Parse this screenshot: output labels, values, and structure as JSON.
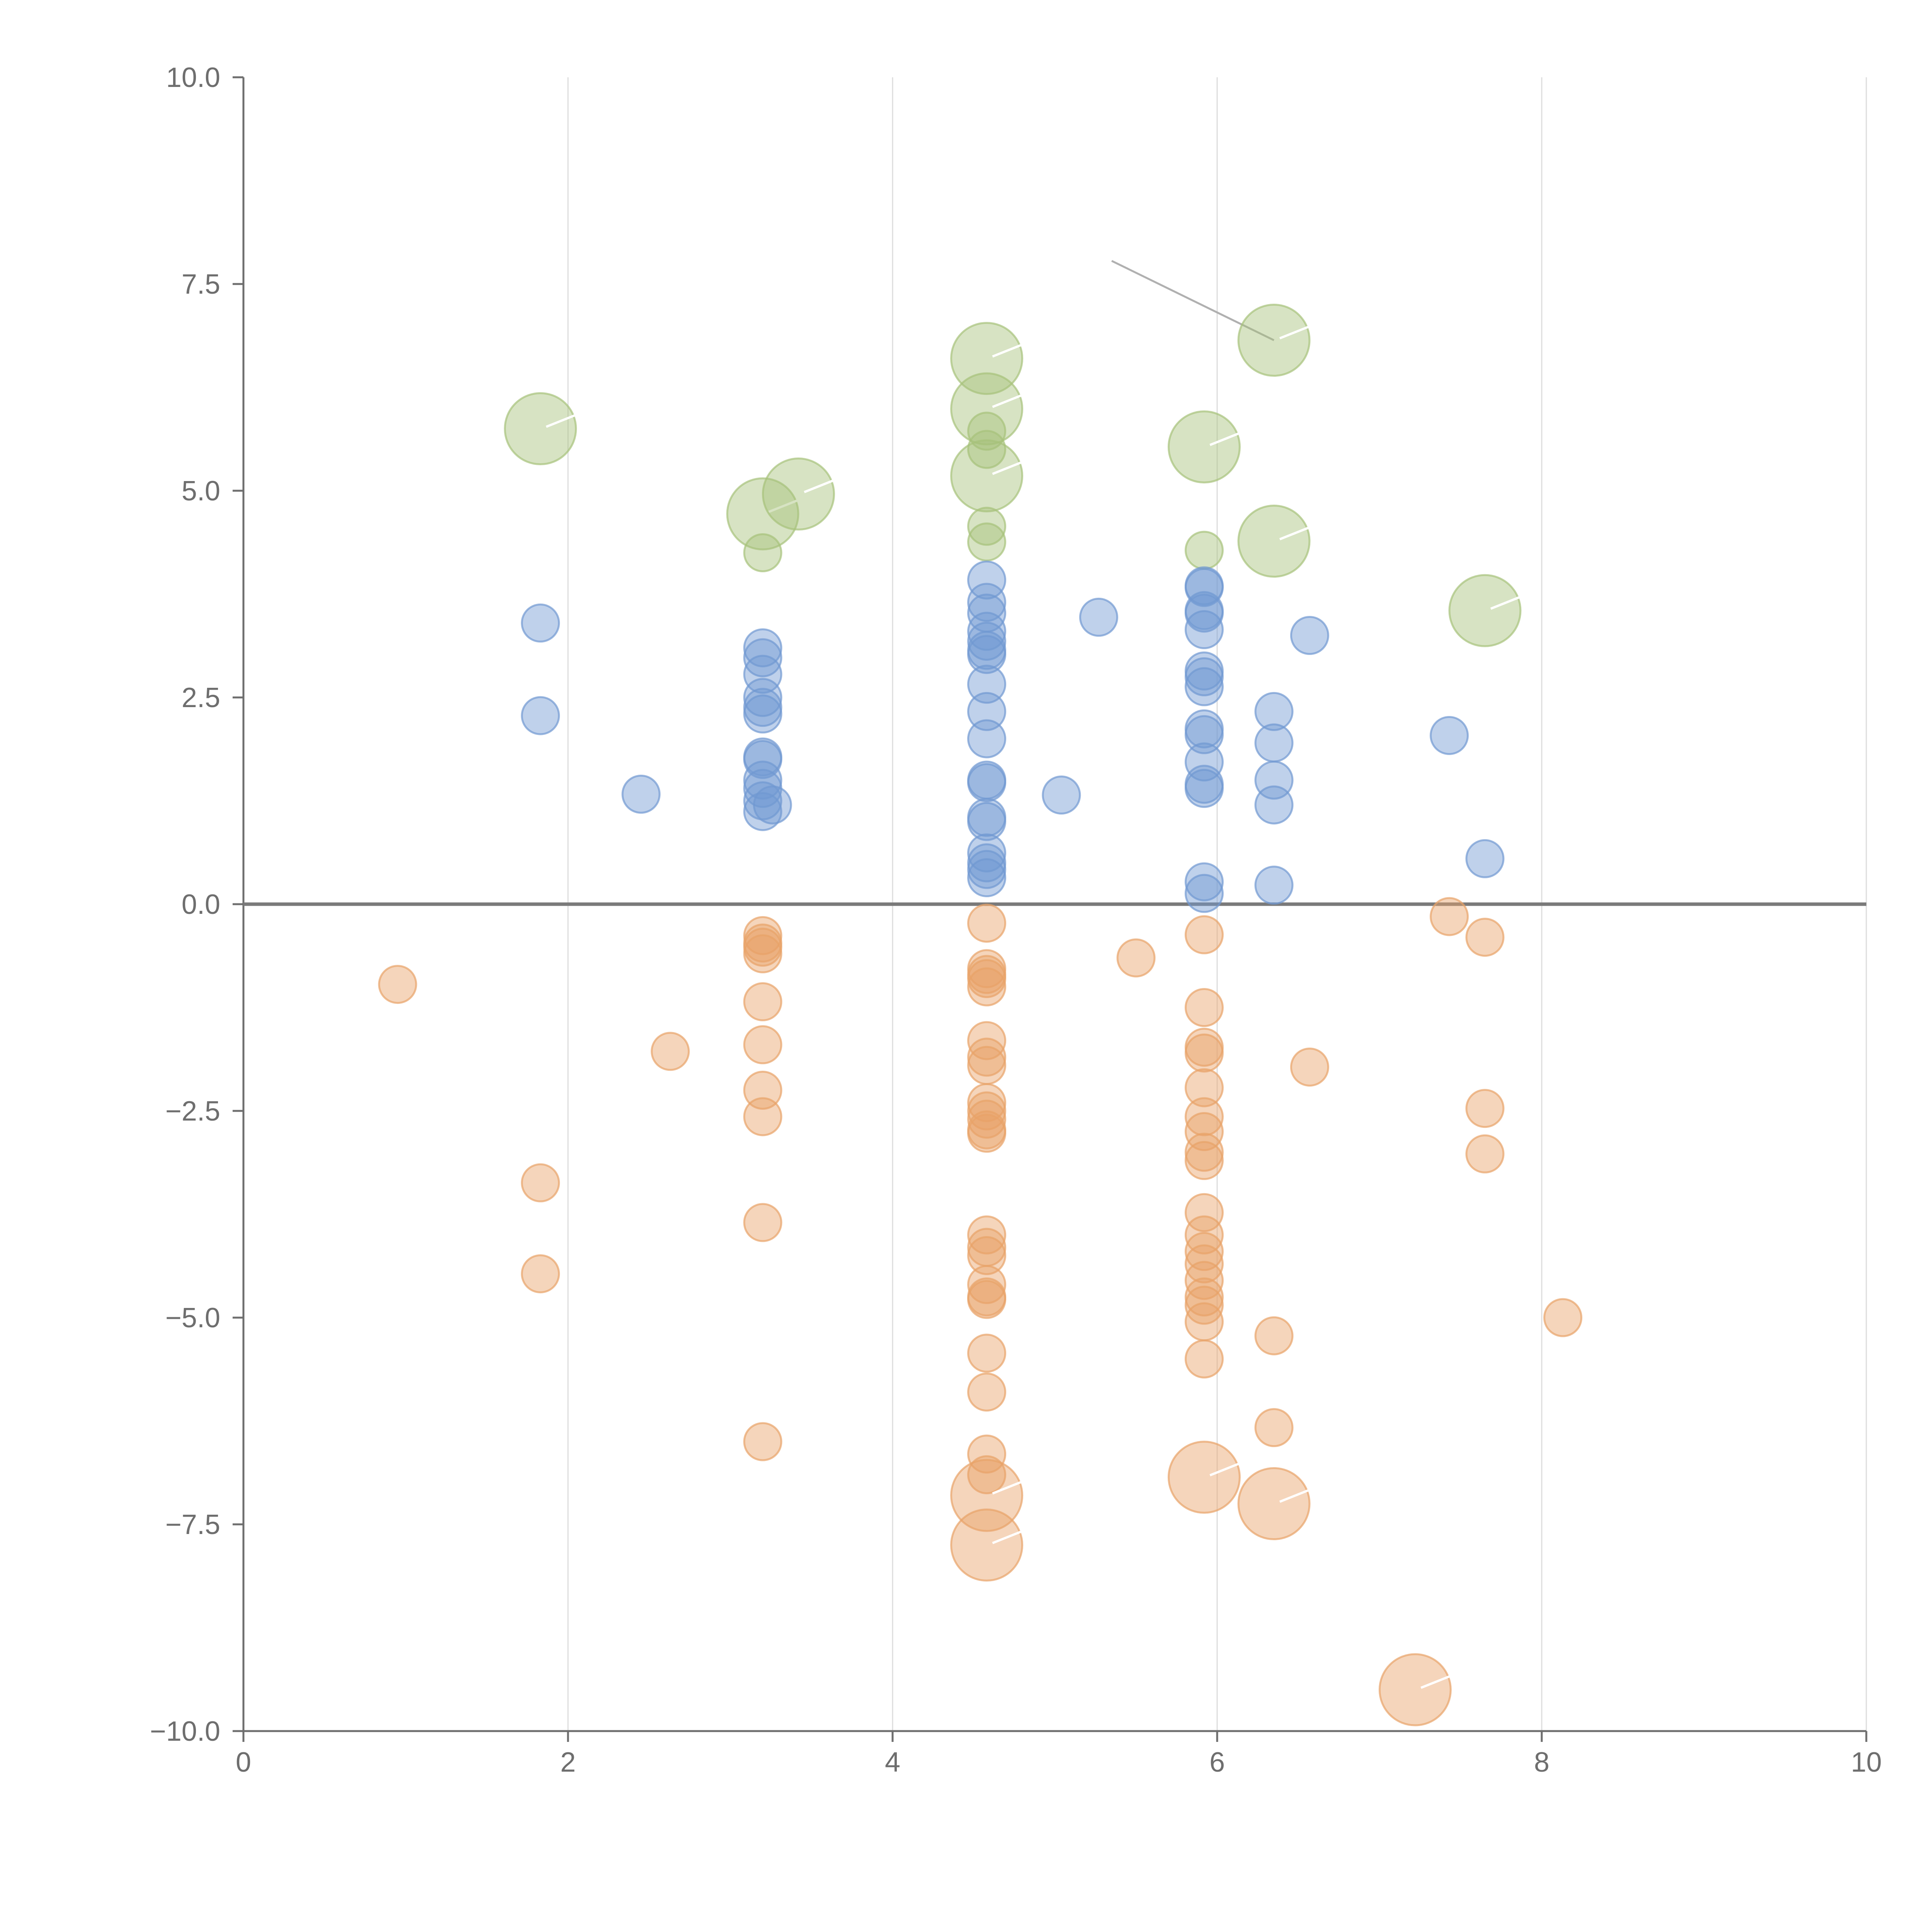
{
  "chart_data": {
    "type": "scatter",
    "title": "",
    "xlabel": "",
    "ylabel": "",
    "xlim": [
      0,
      10
    ],
    "ylim": [
      -10,
      10
    ],
    "x_ticks": [
      "0",
      "2",
      "4",
      "6",
      "8",
      "10"
    ],
    "y_ticks": [
      "10.0",
      "7.5",
      "5.0",
      "2.5",
      "0.0",
      "−2.5",
      "−5.0",
      "−7.5",
      "−10.0"
    ],
    "x_tick_values": [
      0,
      2,
      4,
      6,
      8,
      10
    ],
    "y_tick_values": [
      10,
      7.5,
      5,
      2.5,
      0,
      -2.5,
      -5,
      -7.5,
      -10
    ],
    "grid": "vertical gridlines at x ticks",
    "reference_line": {
      "axis": "y",
      "value": 0
    },
    "series": [
      {
        "color": "#a6c27a",
        "points": [
          {
            "x": 1.83,
            "y": 5.75,
            "size": 2
          },
          {
            "x": 3.2,
            "y": 4.72,
            "size": 2
          },
          {
            "x": 3.42,
            "y": 4.96,
            "size": 2
          },
          {
            "x": 3.2,
            "y": 4.25,
            "size": 1
          },
          {
            "x": 4.58,
            "y": 6.6,
            "size": 2
          },
          {
            "x": 4.58,
            "y": 5.99,
            "size": 2
          },
          {
            "x": 4.58,
            "y": 5.72,
            "size": 1
          },
          {
            "x": 4.58,
            "y": 5.5,
            "size": 1
          },
          {
            "x": 4.58,
            "y": 5.18,
            "size": 2
          },
          {
            "x": 4.58,
            "y": 4.57,
            "size": 1
          },
          {
            "x": 4.58,
            "y": 4.38,
            "size": 1
          },
          {
            "x": 5.92,
            "y": 5.53,
            "size": 2
          },
          {
            "x": 5.92,
            "y": 4.28,
            "size": 1
          },
          {
            "x": 6.35,
            "y": 6.82,
            "size": 2
          },
          {
            "x": 6.35,
            "y": 4.39,
            "size": 2
          },
          {
            "x": 7.65,
            "y": 3.55,
            "size": 2
          }
        ]
      },
      {
        "color": "#7199d2",
        "points": [
          {
            "x": 1.83,
            "y": 3.4,
            "size": 1
          },
          {
            "x": 1.83,
            "y": 2.28,
            "size": 1
          },
          {
            "x": 2.45,
            "y": 1.33,
            "size": 1
          },
          {
            "x": 3.2,
            "y": 3.1,
            "size": 1
          },
          {
            "x": 3.2,
            "y": 2.98,
            "size": 1
          },
          {
            "x": 3.2,
            "y": 2.78,
            "size": 1
          },
          {
            "x": 3.2,
            "y": 2.5,
            "size": 1
          },
          {
            "x": 3.2,
            "y": 2.38,
            "size": 1
          },
          {
            "x": 3.2,
            "y": 2.3,
            "size": 1
          },
          {
            "x": 3.2,
            "y": 1.78,
            "size": 1
          },
          {
            "x": 3.2,
            "y": 1.75,
            "size": 1
          },
          {
            "x": 3.2,
            "y": 1.5,
            "size": 1
          },
          {
            "x": 3.2,
            "y": 1.4,
            "size": 1
          },
          {
            "x": 3.2,
            "y": 1.25,
            "size": 1
          },
          {
            "x": 3.2,
            "y": 1.12,
            "size": 1
          },
          {
            "x": 3.26,
            "y": 1.2,
            "size": 1
          },
          {
            "x": 4.58,
            "y": 3.92,
            "size": 1
          },
          {
            "x": 4.58,
            "y": 3.65,
            "size": 1
          },
          {
            "x": 4.58,
            "y": 3.52,
            "size": 1
          },
          {
            "x": 4.58,
            "y": 3.3,
            "size": 1
          },
          {
            "x": 4.58,
            "y": 3.18,
            "size": 1
          },
          {
            "x": 4.58,
            "y": 3.07,
            "size": 1
          },
          {
            "x": 4.58,
            "y": 3.02,
            "size": 1
          },
          {
            "x": 4.58,
            "y": 2.66,
            "size": 1
          },
          {
            "x": 4.58,
            "y": 2.33,
            "size": 1
          },
          {
            "x": 4.58,
            "y": 2.0,
            "size": 1
          },
          {
            "x": 4.58,
            "y": 1.5,
            "size": 1
          },
          {
            "x": 4.58,
            "y": 1.47,
            "size": 1
          },
          {
            "x": 4.58,
            "y": 1.05,
            "size": 1
          },
          {
            "x": 4.58,
            "y": 1.0,
            "size": 1
          },
          {
            "x": 4.58,
            "y": 0.62,
            "size": 1
          },
          {
            "x": 4.58,
            "y": 0.5,
            "size": 1
          },
          {
            "x": 4.58,
            "y": 0.42,
            "size": 1
          },
          {
            "x": 4.58,
            "y": 0.32,
            "size": 1
          },
          {
            "x": 5.04,
            "y": 1.32,
            "size": 1
          },
          {
            "x": 5.27,
            "y": 3.47,
            "size": 1
          },
          {
            "x": 5.92,
            "y": 3.85,
            "size": 1
          },
          {
            "x": 5.92,
            "y": 3.83,
            "size": 1
          },
          {
            "x": 5.92,
            "y": 3.55,
            "size": 1
          },
          {
            "x": 5.92,
            "y": 3.52,
            "size": 1
          },
          {
            "x": 5.92,
            "y": 3.32,
            "size": 1
          },
          {
            "x": 5.92,
            "y": 2.82,
            "size": 1
          },
          {
            "x": 5.92,
            "y": 2.75,
            "size": 1
          },
          {
            "x": 5.92,
            "y": 2.63,
            "size": 1
          },
          {
            "x": 5.92,
            "y": 2.12,
            "size": 1
          },
          {
            "x": 5.92,
            "y": 2.05,
            "size": 1
          },
          {
            "x": 5.92,
            "y": 1.72,
            "size": 1
          },
          {
            "x": 5.92,
            "y": 1.45,
            "size": 1
          },
          {
            "x": 5.92,
            "y": 1.4,
            "size": 1
          },
          {
            "x": 5.92,
            "y": 0.27,
            "size": 1
          },
          {
            "x": 5.92,
            "y": 0.13,
            "size": 1
          },
          {
            "x": 6.35,
            "y": 2.33,
            "size": 1
          },
          {
            "x": 6.35,
            "y": 1.95,
            "size": 1
          },
          {
            "x": 6.35,
            "y": 1.5,
            "size": 1
          },
          {
            "x": 6.35,
            "y": 1.2,
            "size": 1
          },
          {
            "x": 6.35,
            "y": 0.23,
            "size": 1
          },
          {
            "x": 6.57,
            "y": 3.25,
            "size": 1
          },
          {
            "x": 7.43,
            "y": 2.04,
            "size": 1
          },
          {
            "x": 7.65,
            "y": 0.55,
            "size": 1
          }
        ]
      },
      {
        "color": "#e8a268",
        "points": [
          {
            "x": 0.95,
            "y": -0.97,
            "size": 1
          },
          {
            "x": 1.83,
            "y": -3.37,
            "size": 1
          },
          {
            "x": 1.83,
            "y": -4.47,
            "size": 1
          },
          {
            "x": 2.63,
            "y": -1.78,
            "size": 1
          },
          {
            "x": 3.2,
            "y": -0.38,
            "size": 1
          },
          {
            "x": 3.2,
            "y": -0.47,
            "size": 1
          },
          {
            "x": 3.2,
            "y": -0.52,
            "size": 1
          },
          {
            "x": 3.2,
            "y": -0.6,
            "size": 1
          },
          {
            "x": 3.2,
            "y": -1.18,
            "size": 1
          },
          {
            "x": 3.2,
            "y": -1.7,
            "size": 1
          },
          {
            "x": 3.2,
            "y": -2.25,
            "size": 1
          },
          {
            "x": 3.2,
            "y": -2.57,
            "size": 1
          },
          {
            "x": 3.2,
            "y": -3.85,
            "size": 1
          },
          {
            "x": 3.2,
            "y": -6.5,
            "size": 1
          },
          {
            "x": 4.58,
            "y": -0.23,
            "size": 1
          },
          {
            "x": 4.58,
            "y": -0.78,
            "size": 1
          },
          {
            "x": 4.58,
            "y": -0.85,
            "size": 1
          },
          {
            "x": 4.58,
            "y": -0.9,
            "size": 1
          },
          {
            "x": 4.58,
            "y": -1.0,
            "size": 1
          },
          {
            "x": 4.58,
            "y": -1.65,
            "size": 1
          },
          {
            "x": 4.58,
            "y": -1.85,
            "size": 1
          },
          {
            "x": 4.58,
            "y": -1.95,
            "size": 1
          },
          {
            "x": 4.58,
            "y": -2.4,
            "size": 1
          },
          {
            "x": 4.58,
            "y": -2.5,
            "size": 1
          },
          {
            "x": 4.58,
            "y": -2.6,
            "size": 1
          },
          {
            "x": 4.58,
            "y": -2.73,
            "size": 1
          },
          {
            "x": 4.58,
            "y": -2.77,
            "size": 1
          },
          {
            "x": 4.58,
            "y": -4.0,
            "size": 1
          },
          {
            "x": 4.58,
            "y": -4.15,
            "size": 1
          },
          {
            "x": 4.58,
            "y": -4.25,
            "size": 1
          },
          {
            "x": 4.58,
            "y": -4.6,
            "size": 1
          },
          {
            "x": 4.58,
            "y": -4.75,
            "size": 1
          },
          {
            "x": 4.58,
            "y": -4.78,
            "size": 1
          },
          {
            "x": 4.58,
            "y": -5.43,
            "size": 1
          },
          {
            "x": 4.58,
            "y": -5.9,
            "size": 1
          },
          {
            "x": 4.58,
            "y": -6.65,
            "size": 1
          },
          {
            "x": 4.58,
            "y": -6.9,
            "size": 1
          },
          {
            "x": 4.58,
            "y": -7.15,
            "size": 2
          },
          {
            "x": 4.58,
            "y": -7.75,
            "size": 2
          },
          {
            "x": 5.5,
            "y": -0.65,
            "size": 1
          },
          {
            "x": 5.92,
            "y": -0.37,
            "size": 1
          },
          {
            "x": 5.92,
            "y": -1.25,
            "size": 1
          },
          {
            "x": 5.92,
            "y": -1.73,
            "size": 1
          },
          {
            "x": 5.92,
            "y": -1.8,
            "size": 1
          },
          {
            "x": 5.92,
            "y": -2.22,
            "size": 1
          },
          {
            "x": 5.92,
            "y": -2.57,
            "size": 1
          },
          {
            "x": 5.92,
            "y": -2.75,
            "size": 1
          },
          {
            "x": 5.92,
            "y": -3.0,
            "size": 1
          },
          {
            "x": 5.92,
            "y": -3.1,
            "size": 1
          },
          {
            "x": 5.92,
            "y": -3.73,
            "size": 1
          },
          {
            "x": 5.92,
            "y": -4.0,
            "size": 1
          },
          {
            "x": 5.92,
            "y": -4.2,
            "size": 1
          },
          {
            "x": 5.92,
            "y": -4.35,
            "size": 1
          },
          {
            "x": 5.92,
            "y": -4.55,
            "size": 1
          },
          {
            "x": 5.92,
            "y": -4.75,
            "size": 1
          },
          {
            "x": 5.92,
            "y": -4.85,
            "size": 1
          },
          {
            "x": 5.92,
            "y": -5.05,
            "size": 1
          },
          {
            "x": 5.92,
            "y": -5.5,
            "size": 1
          },
          {
            "x": 5.92,
            "y": -6.93,
            "size": 2
          },
          {
            "x": 6.35,
            "y": -5.22,
            "size": 1
          },
          {
            "x": 6.35,
            "y": -6.33,
            "size": 1
          },
          {
            "x": 6.35,
            "y": -7.25,
            "size": 2
          },
          {
            "x": 6.57,
            "y": -1.97,
            "size": 1
          },
          {
            "x": 7.22,
            "y": -9.5,
            "size": 2
          },
          {
            "x": 7.43,
            "y": -0.15,
            "size": 1
          },
          {
            "x": 7.65,
            "y": -0.4,
            "size": 1
          },
          {
            "x": 7.65,
            "y": -2.47,
            "size": 1
          },
          {
            "x": 7.65,
            "y": -3.02,
            "size": 1
          },
          {
            "x": 8.13,
            "y": -5.0,
            "size": 1
          }
        ]
      }
    ],
    "annotation": {
      "x_from": 5.35,
      "y_from": 7.78,
      "x_to": 6.35,
      "y_to": 6.82
    }
  }
}
